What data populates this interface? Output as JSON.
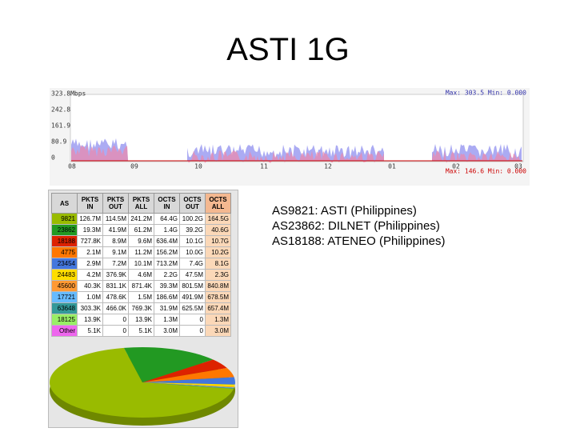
{
  "title": "ASTI 1G",
  "graph": {
    "y_labels": [
      "323.8Mbps",
      "242.8",
      "161.9",
      "80.9",
      "0"
    ],
    "x_labels": [
      "08",
      "09",
      "10",
      "11",
      "12",
      "01",
      "02",
      "03"
    ],
    "max_in": "Max: 303.5 Min: 0.000",
    "max_out": "Max: 146.6 Min: 0.000"
  },
  "table": {
    "headers": [
      "AS",
      "PKTS IN",
      "PKTS OUT",
      "PKTS ALL",
      "OCTS IN",
      "OCTS OUT",
      "OCTS ALL"
    ],
    "rows": [
      [
        "9821",
        "126.7M",
        "114.5M",
        "241.2M",
        "64.4G",
        "100.2G",
        "164.5G"
      ],
      [
        "23862",
        "19.3M",
        "41.9M",
        "61.2M",
        "1.4G",
        "39.2G",
        "40.6G"
      ],
      [
        "18188",
        "727.8K",
        "8.9M",
        "9.6M",
        "636.4M",
        "10.1G",
        "10.7G"
      ],
      [
        "4775",
        "2.1M",
        "9.1M",
        "11.2M",
        "156.2M",
        "10.0G",
        "10.2G"
      ],
      [
        "23454",
        "2.9M",
        "7.2M",
        "10.1M",
        "713.2M",
        "7.4G",
        "8.1G"
      ],
      [
        "24483",
        "4.2M",
        "376.9K",
        "4.6M",
        "2.2G",
        "47.5M",
        "2.3G"
      ],
      [
        "45600",
        "40.3K",
        "831.1K",
        "871.4K",
        "39.3M",
        "801.5M",
        "840.8M"
      ],
      [
        "17721",
        "1.0M",
        "478.6K",
        "1.5M",
        "186.6M",
        "491.9M",
        "678.5M"
      ],
      [
        "63648",
        "303.3K",
        "466.0K",
        "769.3K",
        "31.9M",
        "625.5M",
        "657.4M"
      ],
      [
        "18125",
        "13.9K",
        "0",
        "13.9K",
        "1.3M",
        "0",
        "1.3M"
      ],
      [
        "Other",
        "5.1K",
        "0",
        "5.1K",
        "3.0M",
        "0",
        "3.0M"
      ]
    ]
  },
  "pie": {
    "values": [
      69,
      17,
      4.5,
      4.3,
      3.4,
      1,
      0.35,
      0.28,
      0.28,
      0.01,
      0.01
    ],
    "colors": [
      "#99bb00",
      "#229922",
      "#dd2200",
      "#ff7700",
      "#4477dd",
      "#ffdd00",
      "#ff9933",
      "#66bbff",
      "#339999",
      "#99ee66",
      "#ee66ee"
    ]
  },
  "notes": [
    "AS9821: ASTI (Philippines)",
    "AS23862: DILNET (Philippines)",
    "AS18188: ATENEO (Philippines)"
  ]
}
